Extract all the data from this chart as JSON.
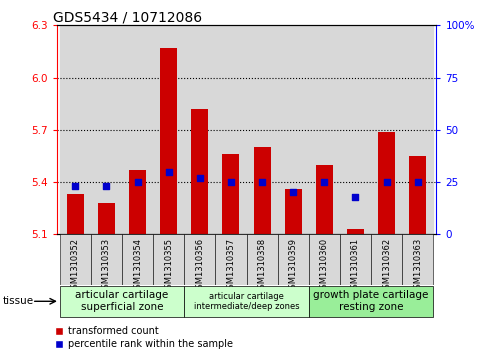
{
  "title": "GDS5434 / 10712086",
  "samples": [
    "GSM1310352",
    "GSM1310353",
    "GSM1310354",
    "GSM1310355",
    "GSM1310356",
    "GSM1310357",
    "GSM1310358",
    "GSM1310359",
    "GSM1310360",
    "GSM1310361",
    "GSM1310362",
    "GSM1310363"
  ],
  "red_values": [
    5.33,
    5.28,
    5.47,
    6.17,
    5.82,
    5.56,
    5.6,
    5.36,
    5.5,
    5.13,
    5.69,
    5.55
  ],
  "blue_values_pct": [
    23,
    23,
    25,
    30,
    27,
    25,
    25,
    20,
    25,
    18,
    25,
    25
  ],
  "ylim": [
    5.1,
    6.3
  ],
  "y_ticks_left": [
    5.1,
    5.4,
    5.7,
    6.0,
    6.3
  ],
  "y_ticks_right": [
    0,
    25,
    50,
    75,
    100
  ],
  "hlines": [
    5.4,
    5.7,
    6.0
  ],
  "bar_color": "#cc0000",
  "dot_color": "#0000cc",
  "bar_bottom": 5.1,
  "tissue_groups": [
    {
      "label": "articular cartilage\nsuperficial zone",
      "start": 0,
      "end": 3,
      "color": "#ccffcc",
      "fontsize": 7.5
    },
    {
      "label": "articular cartilage\nintermediate/deep zones",
      "start": 4,
      "end": 7,
      "color": "#ccffcc",
      "fontsize": 6.0
    },
    {
      "label": "growth plate cartilage\nresting zone",
      "start": 8,
      "end": 11,
      "color": "#99ee99",
      "fontsize": 7.5
    }
  ],
  "legend_red_label": "transformed count",
  "legend_blue_label": "percentile rank within the sample",
  "tissue_label": "tissue",
  "col_bg_color": "#d8d8d8",
  "plot_bg": "#ffffff",
  "title_fontsize": 10,
  "bar_width": 0.55
}
